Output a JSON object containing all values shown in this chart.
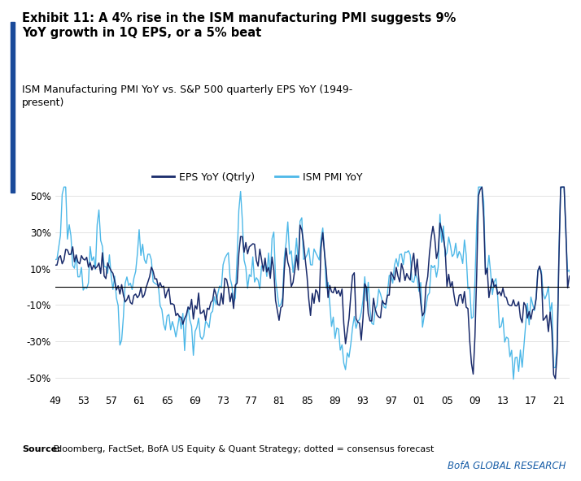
{
  "title_bold": "Exhibit 11: A 4% rise in the ISM manufacturing PMI suggests 9%\nYoY growth in 1Q EPS, or a 5% beat",
  "subtitle": "ISM Manufacturing PMI YoY vs. S&P 500 quarterly EPS YoY (1949-\npresent)",
  "source_bold": "Source:",
  "source_rest": " Bloomberg, FactSet, BofA US Equity & Quant Strategy; dotted = consensus forecast",
  "brand": "BofA GLOBAL RESEARCH",
  "brand_bg": "#c8dff0",
  "eps_color": "#1a2b6b",
  "ism_color": "#4db8e8",
  "background_color": "#ffffff",
  "left_bar_color": "#1a4a9a",
  "yticks": [
    -50,
    -30,
    -10,
    10,
    30,
    50
  ],
  "ytick_labels": [
    "-50%",
    "-30%",
    "-10%",
    "10%",
    "30%",
    "50%"
  ],
  "xtick_labels": [
    "49",
    "53",
    "57",
    "61",
    "65",
    "69",
    "73",
    "77",
    "81",
    "85",
    "89",
    "93",
    "97",
    "01",
    "05",
    "09",
    "13",
    "17",
    "21"
  ],
  "ylim": [
    -58,
    60
  ],
  "legend_eps": "EPS YoY (Qtrly)",
  "legend_ism": "ISM PMI YoY"
}
